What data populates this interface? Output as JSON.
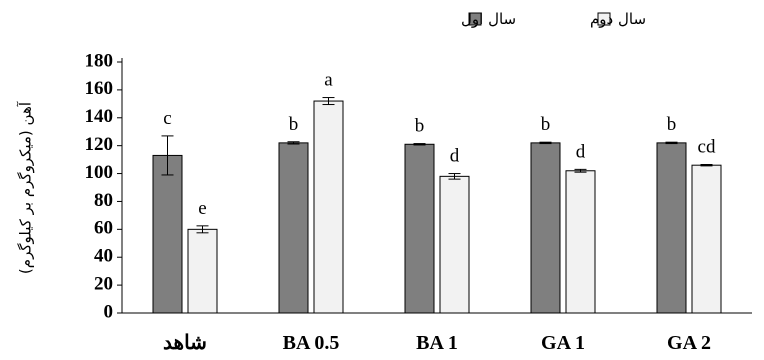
{
  "chart_data": {
    "type": "bar",
    "categories": [
      "شاهد",
      "BA 0.5",
      "BA 1",
      "GA 1",
      "GA 2"
    ],
    "series": [
      {
        "name": "سال اول",
        "color": "#7f7f7f",
        "values": [
          113,
          122,
          121,
          122,
          122
        ],
        "errors": [
          14,
          0.8,
          0.5,
          0.5,
          0.5
        ],
        "labels": [
          "c",
          "b",
          "b",
          "b",
          "b"
        ]
      },
      {
        "name": "سال دوم",
        "color": "#f2f2f2",
        "values": [
          60,
          152,
          98,
          102,
          106
        ],
        "errors": [
          2.5,
          2.5,
          2,
          1,
          0.5
        ],
        "labels": [
          "e",
          "a",
          "d",
          "d",
          "cd"
        ]
      }
    ],
    "ylabel": "آهن (میکروگرم بر کیلوگرم)",
    "ylim": [
      0,
      180
    ],
    "yticks": [
      0,
      20,
      40,
      60,
      80,
      100,
      120,
      140,
      160,
      180
    ],
    "grid": false,
    "legend_position": "top-right"
  }
}
